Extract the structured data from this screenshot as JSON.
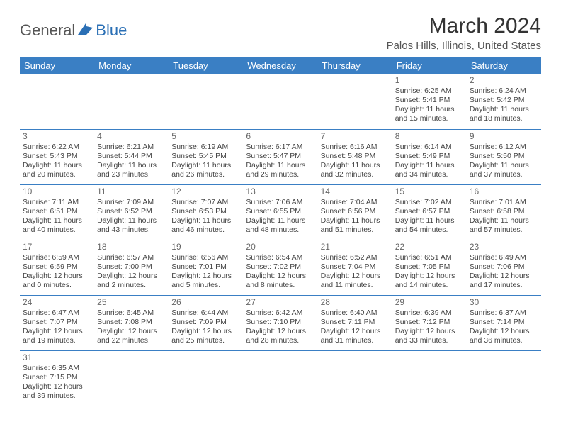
{
  "logo": {
    "part1": "General",
    "part2": "Blue"
  },
  "title": "March 2024",
  "location": "Palos Hills, Illinois, United States",
  "colors": {
    "header_bg": "#3a7fc4",
    "header_text": "#ffffff",
    "rule": "#3a7fc4",
    "logo_blue": "#2a6fb5",
    "text": "#444444"
  },
  "daynames": [
    "Sunday",
    "Monday",
    "Tuesday",
    "Wednesday",
    "Thursday",
    "Friday",
    "Saturday"
  ],
  "weeks": [
    [
      null,
      null,
      null,
      null,
      null,
      {
        "n": "1",
        "sr": "Sunrise: 6:25 AM",
        "ss": "Sunset: 5:41 PM",
        "dl": "Daylight: 11 hours and 15 minutes."
      },
      {
        "n": "2",
        "sr": "Sunrise: 6:24 AM",
        "ss": "Sunset: 5:42 PM",
        "dl": "Daylight: 11 hours and 18 minutes."
      }
    ],
    [
      {
        "n": "3",
        "sr": "Sunrise: 6:22 AM",
        "ss": "Sunset: 5:43 PM",
        "dl": "Daylight: 11 hours and 20 minutes."
      },
      {
        "n": "4",
        "sr": "Sunrise: 6:21 AM",
        "ss": "Sunset: 5:44 PM",
        "dl": "Daylight: 11 hours and 23 minutes."
      },
      {
        "n": "5",
        "sr": "Sunrise: 6:19 AM",
        "ss": "Sunset: 5:45 PM",
        "dl": "Daylight: 11 hours and 26 minutes."
      },
      {
        "n": "6",
        "sr": "Sunrise: 6:17 AM",
        "ss": "Sunset: 5:47 PM",
        "dl": "Daylight: 11 hours and 29 minutes."
      },
      {
        "n": "7",
        "sr": "Sunrise: 6:16 AM",
        "ss": "Sunset: 5:48 PM",
        "dl": "Daylight: 11 hours and 32 minutes."
      },
      {
        "n": "8",
        "sr": "Sunrise: 6:14 AM",
        "ss": "Sunset: 5:49 PM",
        "dl": "Daylight: 11 hours and 34 minutes."
      },
      {
        "n": "9",
        "sr": "Sunrise: 6:12 AM",
        "ss": "Sunset: 5:50 PM",
        "dl": "Daylight: 11 hours and 37 minutes."
      }
    ],
    [
      {
        "n": "10",
        "sr": "Sunrise: 7:11 AM",
        "ss": "Sunset: 6:51 PM",
        "dl": "Daylight: 11 hours and 40 minutes."
      },
      {
        "n": "11",
        "sr": "Sunrise: 7:09 AM",
        "ss": "Sunset: 6:52 PM",
        "dl": "Daylight: 11 hours and 43 minutes."
      },
      {
        "n": "12",
        "sr": "Sunrise: 7:07 AM",
        "ss": "Sunset: 6:53 PM",
        "dl": "Daylight: 11 hours and 46 minutes."
      },
      {
        "n": "13",
        "sr": "Sunrise: 7:06 AM",
        "ss": "Sunset: 6:55 PM",
        "dl": "Daylight: 11 hours and 48 minutes."
      },
      {
        "n": "14",
        "sr": "Sunrise: 7:04 AM",
        "ss": "Sunset: 6:56 PM",
        "dl": "Daylight: 11 hours and 51 minutes."
      },
      {
        "n": "15",
        "sr": "Sunrise: 7:02 AM",
        "ss": "Sunset: 6:57 PM",
        "dl": "Daylight: 11 hours and 54 minutes."
      },
      {
        "n": "16",
        "sr": "Sunrise: 7:01 AM",
        "ss": "Sunset: 6:58 PM",
        "dl": "Daylight: 11 hours and 57 minutes."
      }
    ],
    [
      {
        "n": "17",
        "sr": "Sunrise: 6:59 AM",
        "ss": "Sunset: 6:59 PM",
        "dl": "Daylight: 12 hours and 0 minutes."
      },
      {
        "n": "18",
        "sr": "Sunrise: 6:57 AM",
        "ss": "Sunset: 7:00 PM",
        "dl": "Daylight: 12 hours and 2 minutes."
      },
      {
        "n": "19",
        "sr": "Sunrise: 6:56 AM",
        "ss": "Sunset: 7:01 PM",
        "dl": "Daylight: 12 hours and 5 minutes."
      },
      {
        "n": "20",
        "sr": "Sunrise: 6:54 AM",
        "ss": "Sunset: 7:02 PM",
        "dl": "Daylight: 12 hours and 8 minutes."
      },
      {
        "n": "21",
        "sr": "Sunrise: 6:52 AM",
        "ss": "Sunset: 7:04 PM",
        "dl": "Daylight: 12 hours and 11 minutes."
      },
      {
        "n": "22",
        "sr": "Sunrise: 6:51 AM",
        "ss": "Sunset: 7:05 PM",
        "dl": "Daylight: 12 hours and 14 minutes."
      },
      {
        "n": "23",
        "sr": "Sunrise: 6:49 AM",
        "ss": "Sunset: 7:06 PM",
        "dl": "Daylight: 12 hours and 17 minutes."
      }
    ],
    [
      {
        "n": "24",
        "sr": "Sunrise: 6:47 AM",
        "ss": "Sunset: 7:07 PM",
        "dl": "Daylight: 12 hours and 19 minutes."
      },
      {
        "n": "25",
        "sr": "Sunrise: 6:45 AM",
        "ss": "Sunset: 7:08 PM",
        "dl": "Daylight: 12 hours and 22 minutes."
      },
      {
        "n": "26",
        "sr": "Sunrise: 6:44 AM",
        "ss": "Sunset: 7:09 PM",
        "dl": "Daylight: 12 hours and 25 minutes."
      },
      {
        "n": "27",
        "sr": "Sunrise: 6:42 AM",
        "ss": "Sunset: 7:10 PM",
        "dl": "Daylight: 12 hours and 28 minutes."
      },
      {
        "n": "28",
        "sr": "Sunrise: 6:40 AM",
        "ss": "Sunset: 7:11 PM",
        "dl": "Daylight: 12 hours and 31 minutes."
      },
      {
        "n": "29",
        "sr": "Sunrise: 6:39 AM",
        "ss": "Sunset: 7:12 PM",
        "dl": "Daylight: 12 hours and 33 minutes."
      },
      {
        "n": "30",
        "sr": "Sunrise: 6:37 AM",
        "ss": "Sunset: 7:14 PM",
        "dl": "Daylight: 12 hours and 36 minutes."
      }
    ],
    [
      {
        "n": "31",
        "sr": "Sunrise: 6:35 AM",
        "ss": "Sunset: 7:15 PM",
        "dl": "Daylight: 12 hours and 39 minutes."
      },
      null,
      null,
      null,
      null,
      null,
      null
    ]
  ]
}
